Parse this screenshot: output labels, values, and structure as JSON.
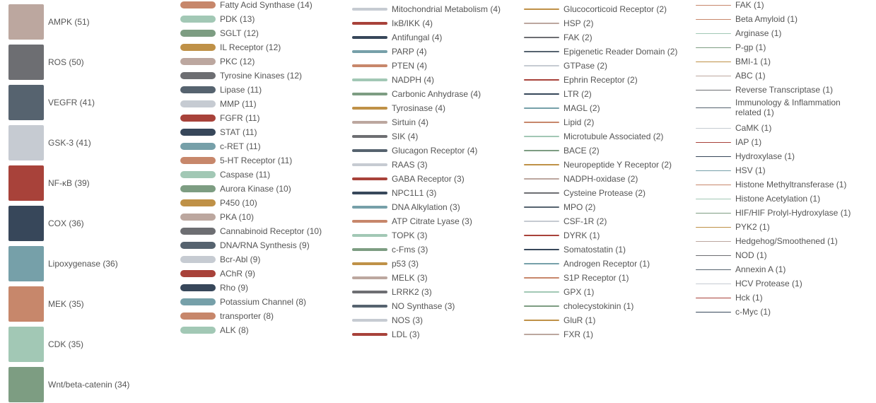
{
  "chart_data": {
    "type": "legend",
    "legend_placement": "full-width, five columns",
    "palette": [
      "#bca79f",
      "#6d6e72",
      "#56636f",
      "#c6cbd2",
      "#a8423a",
      "#37475a",
      "#76a0a9",
      "#c7876b",
      "#a2c8b5",
      "#7d9d82",
      "#bf9147"
    ],
    "columns": [
      {
        "style": "square",
        "items": [
          {
            "label": "AMPK (51)",
            "name": "AMPK",
            "count": 51,
            "color": "#bca79f"
          },
          {
            "label": "ROS (50)",
            "name": "ROS",
            "count": 50,
            "color": "#6d6e72"
          },
          {
            "label": "VEGFR (41)",
            "name": "VEGFR",
            "count": 41,
            "color": "#56636f"
          },
          {
            "label": "GSK-3 (41)",
            "name": "GSK-3",
            "count": 41,
            "color": "#c6cbd2"
          },
          {
            "label": "NF-κB (39)",
            "name": "NF-κB",
            "count": 39,
            "color": "#a8423a"
          },
          {
            "label": "COX (36)",
            "name": "COX",
            "count": 36,
            "color": "#37475a"
          },
          {
            "label": "Lipoxygenase (36)",
            "name": "Lipoxygenase",
            "count": 36,
            "color": "#76a0a9"
          },
          {
            "label": "MEK (35)",
            "name": "MEK",
            "count": 35,
            "color": "#c7876b"
          },
          {
            "label": "CDK (35)",
            "name": "CDK",
            "count": 35,
            "color": "#a2c8b5"
          },
          {
            "label": "Wnt/beta-catenin (34)",
            "name": "Wnt/beta-catenin",
            "count": 34,
            "color": "#7d9d82"
          }
        ]
      },
      {
        "style": "pill",
        "items": [
          {
            "label": "Fatty Acid Synthase (14)",
            "name": "Fatty Acid Synthase",
            "count": 14,
            "color": "#c7876b"
          },
          {
            "label": "PDK (13)",
            "name": "PDK",
            "count": 13,
            "color": "#a2c8b5"
          },
          {
            "label": "SGLT (12)",
            "name": "SGLT",
            "count": 12,
            "color": "#7d9d82"
          },
          {
            "label": "IL Receptor (12)",
            "name": "IL Receptor",
            "count": 12,
            "color": "#bf9147"
          },
          {
            "label": "PKC (12)",
            "name": "PKC",
            "count": 12,
            "color": "#bca79f"
          },
          {
            "label": "Tyrosine Kinases (12)",
            "name": "Tyrosine Kinases",
            "count": 12,
            "color": "#6d6e72"
          },
          {
            "label": "Lipase (11)",
            "name": "Lipase",
            "count": 11,
            "color": "#56636f"
          },
          {
            "label": "MMP (11)",
            "name": "MMP",
            "count": 11,
            "color": "#c6cbd2"
          },
          {
            "label": "FGFR (11)",
            "name": "FGFR",
            "count": 11,
            "color": "#a8423a"
          },
          {
            "label": "STAT (11)",
            "name": "STAT",
            "count": 11,
            "color": "#37475a"
          },
          {
            "label": "c-RET (11)",
            "name": "c-RET",
            "count": 11,
            "color": "#76a0a9"
          },
          {
            "label": "5-HT Receptor (11)",
            "name": "5-HT Receptor",
            "count": 11,
            "color": "#c7876b"
          },
          {
            "label": "Caspase (11)",
            "name": "Caspase",
            "count": 11,
            "color": "#a2c8b5"
          },
          {
            "label": "Aurora Kinase (10)",
            "name": "Aurora Kinase",
            "count": 10,
            "color": "#7d9d82"
          },
          {
            "label": "P450 (10)",
            "name": "P450",
            "count": 10,
            "color": "#bf9147"
          },
          {
            "label": "PKA (10)",
            "name": "PKA",
            "count": 10,
            "color": "#bca79f"
          },
          {
            "label": "Cannabinoid Receptor (10)",
            "name": "Cannabinoid Receptor",
            "count": 10,
            "color": "#6d6e72"
          },
          {
            "label": "DNA/RNA Synthesis (9)",
            "name": "DNA/RNA Synthesis",
            "count": 9,
            "color": "#56636f"
          },
          {
            "label": "Bcr-Abl (9)",
            "name": "Bcr-Abl",
            "count": 9,
            "color": "#c6cbd2"
          },
          {
            "label": "AChR (9)",
            "name": "AChR",
            "count": 9,
            "color": "#a8423a"
          },
          {
            "label": "Rho (9)",
            "name": "Rho",
            "count": 9,
            "color": "#37475a"
          },
          {
            "label": "Potassium Channel (8)",
            "name": "Potassium Channel",
            "count": 8,
            "color": "#76a0a9"
          },
          {
            "label": "transporter (8)",
            "name": "transporter",
            "count": 8,
            "color": "#c7876b"
          },
          {
            "label": "ALK (8)",
            "name": "ALK",
            "count": 8,
            "color": "#a2c8b5"
          }
        ]
      },
      {
        "style": "thick-line",
        "items": [
          {
            "label": "Mitochondrial Metabolism (4)",
            "name": "Mitochondrial Metabolism",
            "count": 4,
            "color": "#c6cbd2"
          },
          {
            "label": "IκB/IKK (4)",
            "name": "IκB/IKK",
            "count": 4,
            "color": "#a8423a"
          },
          {
            "label": "Antifungal (4)",
            "name": "Antifungal",
            "count": 4,
            "color": "#37475a"
          },
          {
            "label": "PARP (4)",
            "name": "PARP",
            "count": 4,
            "color": "#76a0a9"
          },
          {
            "label": "PTEN (4)",
            "name": "PTEN",
            "count": 4,
            "color": "#c7876b"
          },
          {
            "label": "NADPH (4)",
            "name": "NADPH",
            "count": 4,
            "color": "#a2c8b5"
          },
          {
            "label": "Carbonic Anhydrase (4)",
            "name": "Carbonic Anhydrase",
            "count": 4,
            "color": "#7d9d82"
          },
          {
            "label": "Tyrosinase (4)",
            "name": "Tyrosinase",
            "count": 4,
            "color": "#bf9147"
          },
          {
            "label": "Sirtuin (4)",
            "name": "Sirtuin",
            "count": 4,
            "color": "#bca79f"
          },
          {
            "label": "SIK (4)",
            "name": "SIK",
            "count": 4,
            "color": "#6d6e72"
          },
          {
            "label": "Glucagon Receptor (4)",
            "name": "Glucagon Receptor",
            "count": 4,
            "color": "#56636f"
          },
          {
            "label": "RAAS (3)",
            "name": "RAAS",
            "count": 3,
            "color": "#c6cbd2"
          },
          {
            "label": "GABA Receptor (3)",
            "name": "GABA Receptor",
            "count": 3,
            "color": "#a8423a"
          },
          {
            "label": "NPC1L1 (3)",
            "name": "NPC1L1",
            "count": 3,
            "color": "#37475a"
          },
          {
            "label": "DNA Alkylation (3)",
            "name": "DNA Alkylation",
            "count": 3,
            "color": "#76a0a9"
          },
          {
            "label": "ATP Citrate Lyase (3)",
            "name": "ATP Citrate Lyase",
            "count": 3,
            "color": "#c7876b"
          },
          {
            "label": "TOPK (3)",
            "name": "TOPK",
            "count": 3,
            "color": "#a2c8b5"
          },
          {
            "label": "c-Fms (3)",
            "name": "c-Fms",
            "count": 3,
            "color": "#7d9d82"
          },
          {
            "label": "p53 (3)",
            "name": "p53",
            "count": 3,
            "color": "#bf9147"
          },
          {
            "label": "MELK (3)",
            "name": "MELK",
            "count": 3,
            "color": "#bca79f"
          },
          {
            "label": "LRRK2 (3)",
            "name": "LRRK2",
            "count": 3,
            "color": "#6d6e72"
          },
          {
            "label": "NO Synthase (3)",
            "name": "NO Synthase",
            "count": 3,
            "color": "#56636f"
          },
          {
            "label": "NOS (3)",
            "name": "NOS",
            "count": 3,
            "color": "#c6cbd2"
          },
          {
            "label": "LDL (3)",
            "name": "LDL",
            "count": 3,
            "color": "#a8423a"
          }
        ]
      },
      {
        "style": "line",
        "items": [
          {
            "label": "Glucocorticoid Receptor (2)",
            "name": "Glucocorticoid Receptor",
            "count": 2,
            "color": "#bf9147"
          },
          {
            "label": "HSP (2)",
            "name": "HSP",
            "count": 2,
            "color": "#bca79f"
          },
          {
            "label": "FAK (2)",
            "name": "FAK",
            "count": 2,
            "color": "#6d6e72"
          },
          {
            "label": "Epigenetic Reader Domain (2)",
            "name": "Epigenetic Reader Domain",
            "count": 2,
            "color": "#56636f"
          },
          {
            "label": "GTPase (2)",
            "name": "GTPase",
            "count": 2,
            "color": "#c6cbd2"
          },
          {
            "label": "Ephrin Receptor (2)",
            "name": "Ephrin Receptor",
            "count": 2,
            "color": "#a8423a"
          },
          {
            "label": "LTR (2)",
            "name": "LTR",
            "count": 2,
            "color": "#37475a"
          },
          {
            "label": "MAGL (2)",
            "name": "MAGL",
            "count": 2,
            "color": "#76a0a9"
          },
          {
            "label": "Lipid (2)",
            "name": "Lipid",
            "count": 2,
            "color": "#c7876b"
          },
          {
            "label": "Microtubule Associated (2)",
            "name": "Microtubule Associated",
            "count": 2,
            "color": "#a2c8b5"
          },
          {
            "label": "BACE (2)",
            "name": "BACE",
            "count": 2,
            "color": "#7d9d82"
          },
          {
            "label": "Neuropeptide Y Receptor (2)",
            "name": "Neuropeptide Y Receptor",
            "count": 2,
            "color": "#bf9147"
          },
          {
            "label": "NADPH-oxidase (2)",
            "name": "NADPH-oxidase",
            "count": 2,
            "color": "#bca79f"
          },
          {
            "label": "Cysteine Protease (2)",
            "name": "Cysteine Protease",
            "count": 2,
            "color": "#6d6e72"
          },
          {
            "label": "MPO (2)",
            "name": "MPO",
            "count": 2,
            "color": "#56636f"
          },
          {
            "label": "CSF-1R (2)",
            "name": "CSF-1R",
            "count": 2,
            "color": "#c6cbd2"
          },
          {
            "label": "DYRK (1)",
            "name": "DYRK",
            "count": 1,
            "color": "#a8423a"
          },
          {
            "label": "Somatostatin (1)",
            "name": "Somatostatin",
            "count": 1,
            "color": "#37475a"
          },
          {
            "label": "Androgen Receptor (1)",
            "name": "Androgen Receptor",
            "count": 1,
            "color": "#76a0a9"
          },
          {
            "label": "S1P Receptor (1)",
            "name": "S1P Receptor",
            "count": 1,
            "color": "#c7876b"
          },
          {
            "label": "GPX (1)",
            "name": "GPX",
            "count": 1,
            "color": "#a2c8b5"
          },
          {
            "label": "cholecystokinin (1)",
            "name": "cholecystokinin",
            "count": 1,
            "color": "#7d9d82"
          },
          {
            "label": "GluR (1)",
            "name": "GluR",
            "count": 1,
            "color": "#bf9147"
          },
          {
            "label": "FXR (1)",
            "name": "FXR",
            "count": 1,
            "color": "#bca79f"
          }
        ]
      },
      {
        "style": "hairline",
        "items": [
          {
            "label": "FAK (1)",
            "name": "FAK",
            "count": 1,
            "color": "#c7876b",
            "partial": true
          },
          {
            "label": "Beta Amyloid (1)",
            "name": "Beta Amyloid",
            "count": 1,
            "color": "#c7876b"
          },
          {
            "label": "Arginase (1)",
            "name": "Arginase",
            "count": 1,
            "color": "#a2c8b5"
          },
          {
            "label": "P-gp (1)",
            "name": "P-gp",
            "count": 1,
            "color": "#7d9d82"
          },
          {
            "label": "BMI-1 (1)",
            "name": "BMI-1",
            "count": 1,
            "color": "#bf9147"
          },
          {
            "label": "ABC (1)",
            "name": "ABC",
            "count": 1,
            "color": "#bca79f"
          },
          {
            "label": "Reverse Transcriptase (1)",
            "name": "Reverse Transcriptase",
            "count": 1,
            "color": "#6d6e72"
          },
          {
            "label": "Immunology & Inflammation related (1)",
            "name": "Immunology & Inflammation related",
            "count": 1,
            "color": "#56636f",
            "wrap": true
          },
          {
            "label": "CaMK (1)",
            "name": "CaMK",
            "count": 1,
            "color": "#c6cbd2"
          },
          {
            "label": "IAP (1)",
            "name": "IAP",
            "count": 1,
            "color": "#a8423a"
          },
          {
            "label": "Hydroxylase (1)",
            "name": "Hydroxylase",
            "count": 1,
            "color": "#37475a"
          },
          {
            "label": "HSV (1)",
            "name": "HSV",
            "count": 1,
            "color": "#76a0a9"
          },
          {
            "label": "Histone Methyltransferase (1)",
            "name": "Histone Methyltransferase",
            "count": 1,
            "color": "#c7876b"
          },
          {
            "label": "Histone Acetylation (1)",
            "name": "Histone Acetylation",
            "count": 1,
            "color": "#a2c8b5"
          },
          {
            "label": "HIF/HIF Prolyl-Hydroxylase (1)",
            "name": "HIF/HIF Prolyl-Hydroxylase",
            "count": 1,
            "color": "#7d9d82"
          },
          {
            "label": "PYK2 (1)",
            "name": "PYK2",
            "count": 1,
            "color": "#bf9147"
          },
          {
            "label": "Hedgehog/Smoothened (1)",
            "name": "Hedgehog/Smoothened",
            "count": 1,
            "color": "#bca79f"
          },
          {
            "label": "NOD (1)",
            "name": "NOD",
            "count": 1,
            "color": "#6d6e72"
          },
          {
            "label": "Annexin A (1)",
            "name": "Annexin A",
            "count": 1,
            "color": "#56636f"
          },
          {
            "label": "HCV Protease (1)",
            "name": "HCV Protease",
            "count": 1,
            "color": "#c6cbd2"
          },
          {
            "label": "Hck (1)",
            "name": "Hck",
            "count": 1,
            "color": "#a8423a"
          },
          {
            "label": "c-Myc (1)",
            "name": "c-Myc",
            "count": 1,
            "color": "#37475a"
          }
        ]
      }
    ]
  }
}
